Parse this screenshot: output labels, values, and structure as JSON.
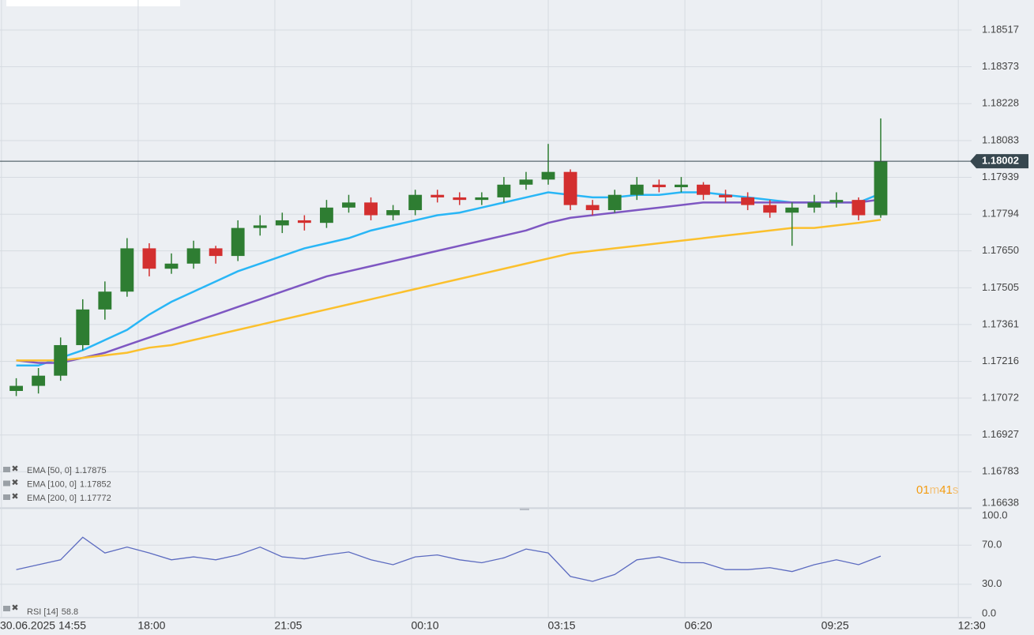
{
  "chart_data": [
    {
      "type": "candlestick",
      "x": [
        "2025-06-30 15:00",
        "2025-06-30 15:30",
        "2025-06-30 16:00",
        "2025-06-30 16:30",
        "2025-06-30 17:00",
        "2025-06-30 17:30",
        "2025-06-30 18:00",
        "2025-06-30 18:30",
        "2025-06-30 19:00",
        "2025-06-30 19:30",
        "2025-06-30 20:00",
        "2025-06-30 20:30",
        "2025-06-30 21:00",
        "2025-06-30 21:30",
        "2025-06-30 22:00",
        "2025-06-30 22:30",
        "2025-06-30 23:00",
        "2025-06-30 23:30",
        "2025-07-01 00:00",
        "2025-07-01 00:30",
        "2025-07-01 01:00",
        "2025-07-01 01:30",
        "2025-07-01 02:00",
        "2025-07-01 02:30",
        "2025-07-01 03:00",
        "2025-07-01 03:30",
        "2025-07-01 04:00",
        "2025-07-01 04:30",
        "2025-07-01 05:00",
        "2025-07-01 05:30",
        "2025-07-01 06:00",
        "2025-07-01 06:30",
        "2025-07-01 07:00",
        "2025-07-01 07:30",
        "2025-07-01 08:00",
        "2025-07-01 08:30",
        "2025-07-01 09:00",
        "2025-07-01 09:30",
        "2025-07-01 10:00",
        "2025-07-01 10:30"
      ],
      "open": [
        1.171,
        1.1712,
        1.1716,
        1.1728,
        1.1742,
        1.1749,
        1.1766,
        1.1758,
        1.176,
        1.1766,
        1.1763,
        1.1774,
        1.1775,
        1.1777,
        1.1776,
        1.1782,
        1.1784,
        1.1779,
        1.1781,
        1.1787,
        1.1786,
        1.1785,
        1.1786,
        1.1791,
        1.1793,
        1.1796,
        1.1783,
        1.1781,
        1.1787,
        1.1791,
        1.179,
        1.1791,
        1.1787,
        1.1786,
        1.1783,
        1.178,
        1.1782,
        1.1784,
        1.1785,
        1.1779
      ],
      "high": [
        1.1715,
        1.1719,
        1.1731,
        1.1746,
        1.1753,
        1.177,
        1.1768,
        1.1764,
        1.1769,
        1.1767,
        1.1777,
        1.1779,
        1.178,
        1.1779,
        1.1785,
        1.1787,
        1.1786,
        1.1783,
        1.1789,
        1.1789,
        1.1788,
        1.1788,
        1.1794,
        1.1796,
        1.1807,
        1.1797,
        1.1785,
        1.1789,
        1.1794,
        1.1793,
        1.1794,
        1.1792,
        1.1789,
        1.1788,
        1.1785,
        1.1784,
        1.1787,
        1.1788,
        1.1786,
        1.1817
      ],
      "low": [
        1.1708,
        1.1709,
        1.1714,
        1.1726,
        1.1738,
        1.1747,
        1.1755,
        1.1756,
        1.1758,
        1.176,
        1.1761,
        1.1771,
        1.1772,
        1.1773,
        1.1774,
        1.178,
        1.1777,
        1.1777,
        1.1779,
        1.1784,
        1.1783,
        1.1783,
        1.1784,
        1.1789,
        1.1791,
        1.1781,
        1.1779,
        1.178,
        1.1785,
        1.1788,
        1.1788,
        1.1785,
        1.1784,
        1.1781,
        1.1778,
        1.1767,
        1.178,
        1.1782,
        1.1777,
        1.1778
      ],
      "close": [
        1.1712,
        1.1716,
        1.1728,
        1.1742,
        1.1749,
        1.1766,
        1.1758,
        1.176,
        1.1766,
        1.1763,
        1.1774,
        1.1775,
        1.1777,
        1.1776,
        1.1782,
        1.1784,
        1.1779,
        1.1781,
        1.1787,
        1.1786,
        1.1785,
        1.1786,
        1.1791,
        1.1793,
        1.1796,
        1.1783,
        1.1781,
        1.1787,
        1.1791,
        1.179,
        1.1791,
        1.1787,
        1.1786,
        1.1783,
        1.178,
        1.1782,
        1.1784,
        1.1785,
        1.1779,
        1.18002
      ],
      "up_color": "#2e7d32",
      "down_color": "#d32f2f",
      "series": [
        {
          "name": "EMA [50, 0]",
          "color": "#29b6f6",
          "values": [
            1.172,
            1.172,
            1.1723,
            1.1726,
            1.173,
            1.1734,
            1.174,
            1.1745,
            1.1749,
            1.1753,
            1.1757,
            1.176,
            1.1763,
            1.1766,
            1.1768,
            1.177,
            1.1773,
            1.1775,
            1.1777,
            1.1779,
            1.178,
            1.1782,
            1.1784,
            1.1786,
            1.1788,
            1.1787,
            1.1786,
            1.1786,
            1.1787,
            1.1787,
            1.1788,
            1.1788,
            1.1787,
            1.1786,
            1.1785,
            1.1784,
            1.1784,
            1.1784,
            1.1784,
            1.17875
          ]
        },
        {
          "name": "EMA [100, 0]",
          "color": "#7e57c2",
          "values": [
            1.1722,
            1.1721,
            1.1721,
            1.1723,
            1.1725,
            1.1728,
            1.1731,
            1.1734,
            1.1737,
            1.174,
            1.1743,
            1.1746,
            1.1749,
            1.1752,
            1.1755,
            1.1757,
            1.1759,
            1.1761,
            1.1763,
            1.1765,
            1.1767,
            1.1769,
            1.1771,
            1.1773,
            1.1776,
            1.1778,
            1.1779,
            1.178,
            1.1781,
            1.1782,
            1.1783,
            1.1784,
            1.1784,
            1.1784,
            1.1784,
            1.1784,
            1.1784,
            1.1784,
            1.1784,
            1.17852
          ]
        },
        {
          "name": "EMA [200, 0]",
          "color": "#fbc02d",
          "values": [
            1.1722,
            1.1722,
            1.1722,
            1.1723,
            1.1724,
            1.1725,
            1.1727,
            1.1728,
            1.173,
            1.1732,
            1.1734,
            1.1736,
            1.1738,
            1.174,
            1.1742,
            1.1744,
            1.1746,
            1.1748,
            1.175,
            1.1752,
            1.1754,
            1.1756,
            1.1758,
            1.176,
            1.1762,
            1.1764,
            1.1765,
            1.1766,
            1.1767,
            1.1768,
            1.1769,
            1.177,
            1.1771,
            1.1772,
            1.1773,
            1.1774,
            1.1774,
            1.1775,
            1.1776,
            1.17772
          ]
        }
      ],
      "ylim": [
        1.16638,
        1.18635
      ],
      "yticks": [
        1.18517,
        1.18373,
        1.18228,
        1.18083,
        1.17939,
        1.17794,
        {
          "value": 1.1765,
          "label": "1.17650"
        },
        1.17505,
        1.17361,
        1.17216,
        1.17072,
        1.16927,
        1.16783,
        1.16638
      ],
      "xlim": [
        "2025-06-30 14:53",
        "2025-07-01 12:48"
      ],
      "xticks": [
        {
          "value": "2025-06-30 14:55",
          "label": "30.06.2025 14:55"
        },
        {
          "value": "2025-06-30 18:00",
          "label": "18:00"
        },
        {
          "value": "2025-06-30 21:05",
          "label": "21:05"
        },
        {
          "value": "2025-07-01 00:10",
          "label": "00:10"
        },
        {
          "value": "2025-07-01 03:15",
          "label": "03:15"
        },
        {
          "value": "2025-07-01 06:20",
          "label": "06:20"
        },
        {
          "value": "2025-07-01 09:25",
          "label": "09:25"
        },
        {
          "value": "2025-07-01 12:30",
          "label": "12:30"
        }
      ],
      "grid": true,
      "countdown": [
        "01",
        "m",
        "41",
        "s"
      ]
    },
    {
      "type": "line",
      "name": "RSI [14]",
      "color": "#5c6bc0",
      "x": [
        "2025-06-30 15:00",
        "2025-06-30 15:30",
        "2025-06-30 16:00",
        "2025-06-30 16:30",
        "2025-06-30 17:00",
        "2025-06-30 17:30",
        "2025-06-30 18:00",
        "2025-06-30 18:30",
        "2025-06-30 19:00",
        "2025-06-30 19:30",
        "2025-06-30 20:00",
        "2025-06-30 20:30",
        "2025-06-30 21:00",
        "2025-06-30 21:30",
        "2025-06-30 22:00",
        "2025-06-30 22:30",
        "2025-06-30 23:00",
        "2025-06-30 23:30",
        "2025-07-01 00:00",
        "2025-07-01 00:30",
        "2025-07-01 01:00",
        "2025-07-01 01:30",
        "2025-07-01 02:00",
        "2025-07-01 02:30",
        "2025-07-01 03:00",
        "2025-07-01 03:30",
        "2025-07-01 04:00",
        "2025-07-01 04:30",
        "2025-07-01 05:00",
        "2025-07-01 05:30",
        "2025-07-01 06:00",
        "2025-07-01 06:30",
        "2025-07-01 07:00",
        "2025-07-01 07:30",
        "2025-07-01 08:00",
        "2025-07-01 08:30",
        "2025-07-01 09:00",
        "2025-07-01 09:30",
        "2025-07-01 10:00",
        "2025-07-01 10:30"
      ],
      "values": [
        45,
        50,
        55,
        78,
        62,
        68,
        62,
        55,
        58,
        55,
        60,
        68,
        58,
        56,
        60,
        63,
        55,
        50,
        58,
        60,
        55,
        52,
        57,
        66,
        62,
        38,
        33,
        40,
        55,
        58,
        52,
        52,
        45,
        45,
        47,
        43,
        50,
        55,
        50,
        58.8
      ],
      "ylim": [
        0,
        100
      ],
      "yticks": [
        {
          "value": 100,
          "label": "100.0"
        },
        {
          "value": 70,
          "label": "70.0"
        },
        {
          "value": 30,
          "label": "30.0"
        },
        {
          "value": 0,
          "label": "0.0"
        }
      ]
    }
  ]
}
